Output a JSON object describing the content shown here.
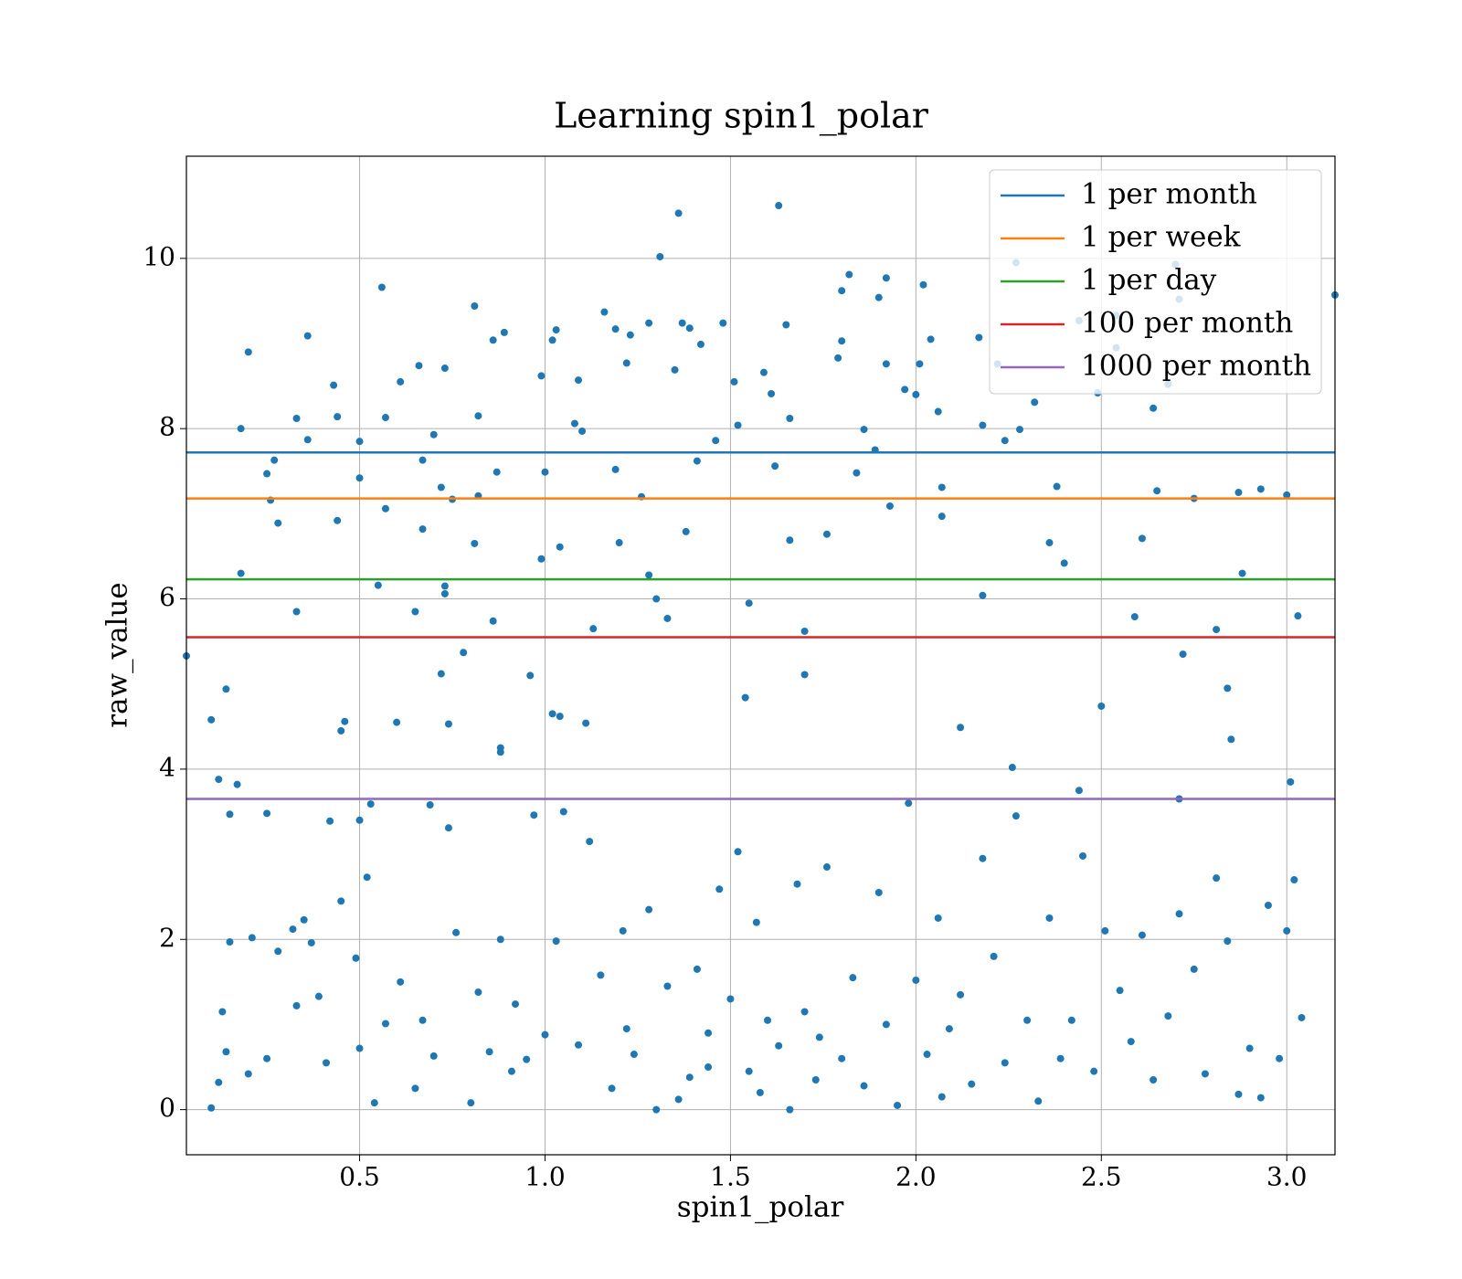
{
  "chart_data": {
    "type": "scatter",
    "title": "Learning spin1_polar",
    "x_label": "spin1_polar",
    "y_label": "raw_value",
    "color": "#1f77b4",
    "grid": true,
    "legend": "upper right",
    "xlim": [
      0.033,
      3.13
    ],
    "ylim": [
      -0.53,
      11.2
    ],
    "xticks": [
      0.5,
      {
        "value": 1,
        "label": "1.0"
      },
      1.5,
      {
        "value": 2,
        "label": "2.0"
      },
      2.5,
      {
        "value": 3,
        "label": "3.0"
      }
    ],
    "yticks": [
      0,
      2,
      4,
      6,
      8,
      10
    ],
    "hlines": [
      {
        "name": "1 per month",
        "color": "#1f77b4",
        "value": 7.72
      },
      {
        "name": "1 per week",
        "color": "#ff7f0e",
        "value": 7.18
      },
      {
        "name": "1 per day",
        "color": "#2ca02c",
        "value": 6.23
      },
      {
        "name": "100 per month",
        "color": "#d62728",
        "value": 5.55
      },
      {
        "name": "1000 per month",
        "color": "#9467bd",
        "value": 3.65
      }
    ],
    "x": [
      0.033,
      0.1,
      0.12,
      0.14,
      0.15,
      0.17,
      0.18,
      0.18,
      0.2,
      0.25,
      0.27,
      0.28,
      0.26,
      0.25,
      0.33,
      0.33,
      0.36,
      0.36,
      0.43,
      0.44,
      0.44,
      0.45,
      0.46,
      0.5,
      0.5,
      0.5,
      0.56,
      0.57,
      0.57,
      0.55,
      0.61,
      0.6,
      0.66,
      0.67,
      0.67,
      0.65,
      0.7,
      0.72,
      0.73,
      0.73,
      0.72,
      0.74,
      0.75,
      0.73,
      0.78,
      0.81,
      0.82,
      0.82,
      0.81,
      0.86,
      0.86,
      0.89,
      0.87,
      0.88,
      0.88,
      0.96,
      0.99,
      1.0,
      0.99,
      1.02,
      1.03,
      1.04,
      1.02,
      1.04,
      1.08,
      1.09,
      1.1,
      1.11,
      1.13,
      1.16,
      1.19,
      1.19,
      1.2,
      1.22,
      1.23,
      1.26,
      1.28,
      1.28,
      1.3,
      1.31,
      1.33,
      1.35,
      1.36,
      1.37,
      1.38,
      1.39,
      1.41,
      1.42,
      1.46,
      1.48,
      1.51,
      1.52,
      1.55,
      1.54,
      1.59,
      1.61,
      1.62,
      1.63,
      1.65,
      1.66,
      1.66,
      1.7,
      1.7,
      1.76,
      1.79,
      1.8,
      1.8,
      1.82,
      1.84,
      1.86,
      1.89,
      1.9,
      1.92,
      1.92,
      1.93,
      1.97,
      2.0,
      2.01,
      2.02,
      2.04,
      2.06,
      2.07,
      2.07,
      2.12,
      2.17,
      2.18,
      2.18,
      2.22,
      2.24,
      2.27,
      2.28,
      2.32,
      2.36,
      2.38,
      2.4,
      2.44,
      2.49,
      2.5,
      2.54,
      2.54,
      2.59,
      2.61,
      2.64,
      2.65,
      2.68,
      2.7,
      2.71,
      2.72,
      2.75,
      2.81,
      2.84,
      2.87,
      2.88,
      2.93,
      3.0,
      3.03,
      3.01,
      3.13,
      2.85,
      2.71,
      2.44,
      2.26,
      0.1,
      0.12,
      0.13,
      0.14,
      0.15,
      0.2,
      0.21,
      0.25,
      0.28,
      0.32,
      0.33,
      0.35,
      0.37,
      0.39,
      0.41,
      0.42,
      0.45,
      0.49,
      0.5,
      0.52,
      0.53,
      0.54,
      0.57,
      0.61,
      0.65,
      0.67,
      0.69,
      0.7,
      0.74,
      0.76,
      0.8,
      0.82,
      0.85,
      0.88,
      0.92,
      0.95,
      0.97,
      1.0,
      1.03,
      1.05,
      1.09,
      1.12,
      1.15,
      1.18,
      1.21,
      1.24,
      1.28,
      1.3,
      1.33,
      1.36,
      1.39,
      1.41,
      1.44,
      1.47,
      1.5,
      1.52,
      1.55,
      1.57,
      1.6,
      1.63,
      1.66,
      1.68,
      1.7,
      1.73,
      1.76,
      1.8,
      1.83,
      1.86,
      1.9,
      1.92,
      1.95,
      1.98,
      2.0,
      2.03,
      2.06,
      2.09,
      2.12,
      2.15,
      2.18,
      2.21,
      2.24,
      2.27,
      2.3,
      2.33,
      2.36,
      2.39,
      2.42,
      2.45,
      2.48,
      2.51,
      2.55,
      2.58,
      2.61,
      2.64,
      2.68,
      2.71,
      2.75,
      2.78,
      2.81,
      2.84,
      2.87,
      2.9,
      2.93,
      2.95,
      2.98,
      3.0,
      3.02,
      3.04,
      1.44,
      1.58,
      1.74,
      1.22,
      0.91,
      2.07
    ],
    "values": [
      5.33,
      4.58,
      3.88,
      4.94,
      3.47,
      3.82,
      8.0,
      6.3,
      8.9,
      7.47,
      7.63,
      6.89,
      7.16,
      3.48,
      8.12,
      5.85,
      9.09,
      7.87,
      8.51,
      8.14,
      6.92,
      4.45,
      4.56,
      7.85,
      7.42,
      3.4,
      9.66,
      8.13,
      7.06,
      6.16,
      8.55,
      4.55,
      8.74,
      7.63,
      6.82,
      5.85,
      7.93,
      7.31,
      6.15,
      6.06,
      5.12,
      4.53,
      7.17,
      8.71,
      5.37,
      9.44,
      8.15,
      7.21,
      6.65,
      5.74,
      9.04,
      9.13,
      7.49,
      4.25,
      4.2,
      5.1,
      8.62,
      7.49,
      6.47,
      9.04,
      9.16,
      6.61,
      4.65,
      4.62,
      8.06,
      8.57,
      7.97,
      4.54,
      5.65,
      9.37,
      9.17,
      7.52,
      6.66,
      8.77,
      9.1,
      7.2,
      9.24,
      6.28,
      6.0,
      10.02,
      5.77,
      8.69,
      10.53,
      9.24,
      6.79,
      9.18,
      7.62,
      8.99,
      7.86,
      9.24,
      8.55,
      8.04,
      5.95,
      4.84,
      8.66,
      8.41,
      7.56,
      10.62,
      9.22,
      8.12,
      6.69,
      5.62,
      5.11,
      6.76,
      8.83,
      9.03,
      9.62,
      9.81,
      7.48,
      7.99,
      7.75,
      9.54,
      9.77,
      8.76,
      7.09,
      8.46,
      8.4,
      8.76,
      9.69,
      9.05,
      8.2,
      7.31,
      6.97,
      4.49,
      9.07,
      8.04,
      6.04,
      8.76,
      7.86,
      9.95,
      7.99,
      8.31,
      6.66,
      7.32,
      6.42,
      9.27,
      8.42,
      4.74,
      8.95,
      9.33,
      5.79,
      6.71,
      8.24,
      7.27,
      8.52,
      9.93,
      9.52,
      5.35,
      7.18,
      5.64,
      4.95,
      7.25,
      6.3,
      7.29,
      7.22,
      5.8,
      3.85,
      9.57,
      4.35,
      3.65,
      3.75,
      4.02,
      0.02,
      0.32,
      1.15,
      0.68,
      1.97,
      0.42,
      2.02,
      0.6,
      1.86,
      2.12,
      1.22,
      2.23,
      1.96,
      1.33,
      0.55,
      3.39,
      2.45,
      1.78,
      0.72,
      2.73,
      3.59,
      0.08,
      1.01,
      1.5,
      0.25,
      1.05,
      3.58,
      0.63,
      3.31,
      2.08,
      0.08,
      1.38,
      0.68,
      2.0,
      1.24,
      0.59,
      3.46,
      0.88,
      1.98,
      3.5,
      0.76,
      3.15,
      1.58,
      0.25,
      2.1,
      0.65,
      2.35,
      0.0,
      1.45,
      0.12,
      0.38,
      1.65,
      0.9,
      2.59,
      1.3,
      3.03,
      0.45,
      2.2,
      1.05,
      0.75,
      0.0,
      2.65,
      1.15,
      0.35,
      2.85,
      0.6,
      1.55,
      0.28,
      2.55,
      1.0,
      0.05,
      3.6,
      1.52,
      0.65,
      2.25,
      0.95,
      1.35,
      0.3,
      2.95,
      1.8,
      0.55,
      3.45,
      1.05,
      0.1,
      2.25,
      0.6,
      1.05,
      2.98,
      0.45,
      2.1,
      1.4,
      0.8,
      2.05,
      0.35,
      1.1,
      2.3,
      1.65,
      0.42,
      2.72,
      1.98,
      0.18,
      0.72,
      0.14,
      2.4,
      0.6,
      2.1,
      2.7,
      1.08,
      0.5,
      0.2,
      0.85,
      0.95,
      0.45,
      0.15
    ]
  }
}
